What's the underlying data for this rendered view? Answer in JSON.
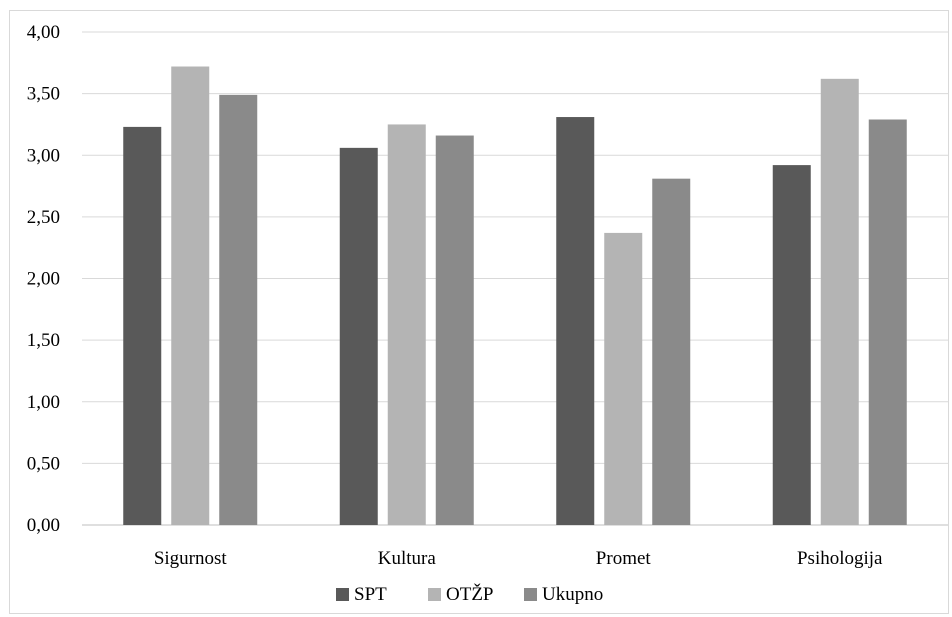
{
  "chart_data": {
    "type": "bar",
    "categories": [
      "Sigurnost",
      "Kultura",
      "Promet",
      "Psihologija"
    ],
    "series": [
      {
        "name": "SPT",
        "values": [
          3.23,
          3.06,
          3.31,
          2.92
        ],
        "color": "#595959"
      },
      {
        "name": "OTŽP",
        "values": [
          3.72,
          3.25,
          2.37,
          3.62
        ],
        "color": "#b4b4b4"
      },
      {
        "name": "Ukupno",
        "values": [
          3.49,
          3.16,
          2.81,
          3.29
        ],
        "color": "#8a8a8a"
      }
    ],
    "ylim": [
      0,
      4
    ],
    "yticks": [
      "0,00",
      "0,50",
      "1,00",
      "1,50",
      "2,00",
      "2,50",
      "3,00",
      "3,50",
      "4,00"
    ],
    "grid": true,
    "legend_position": "bottom",
    "title": "",
    "xlabel": "",
    "ylabel": ""
  }
}
